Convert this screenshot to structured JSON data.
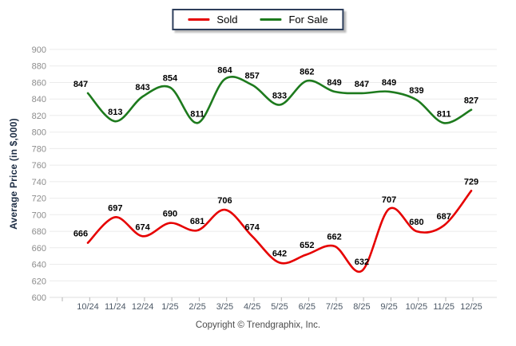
{
  "chart_data": {
    "type": "line",
    "title": "",
    "xlabel": "",
    "ylabel": "Average Price (in $,000)",
    "categories": [
      "10/24",
      "11/24",
      "12/24",
      "1/25",
      "2/25",
      "3/25",
      "4/25",
      "5/25",
      "6/25",
      "7/25",
      "8/25",
      "9/25",
      "10/25",
      "11/25",
      "12/25"
    ],
    "series": [
      {
        "name": "Sold",
        "color": "#e60000",
        "values": [
          666,
          697,
          674,
          690,
          681,
          706,
          674,
          642,
          652,
          662,
          632,
          707,
          680,
          687,
          729
        ]
      },
      {
        "name": "For Sale",
        "color": "#1d7a1d",
        "values": [
          847,
          813,
          843,
          854,
          811,
          864,
          857,
          833,
          862,
          849,
          847,
          849,
          839,
          811,
          827
        ]
      }
    ],
    "ylim": [
      600,
      900
    ],
    "ytick_step": 20,
    "grid": true,
    "smooth_lines": true,
    "data_labels": true,
    "legend_position": "top-center"
  },
  "footer": {
    "copyright": "Copyright © Trendgraphix, Inc."
  },
  "colors": {
    "background": "#ffffff",
    "grid_line": "#ebebeb",
    "baseline": "#dcdcdc",
    "axis_tick": "#b5b5b5",
    "y_tick_label": "#8c8c8c",
    "x_tick_label": "#4c5866",
    "value_label": "#000000",
    "axis_title": "#1d2d44",
    "legend_border": "#2e3f5c"
  }
}
